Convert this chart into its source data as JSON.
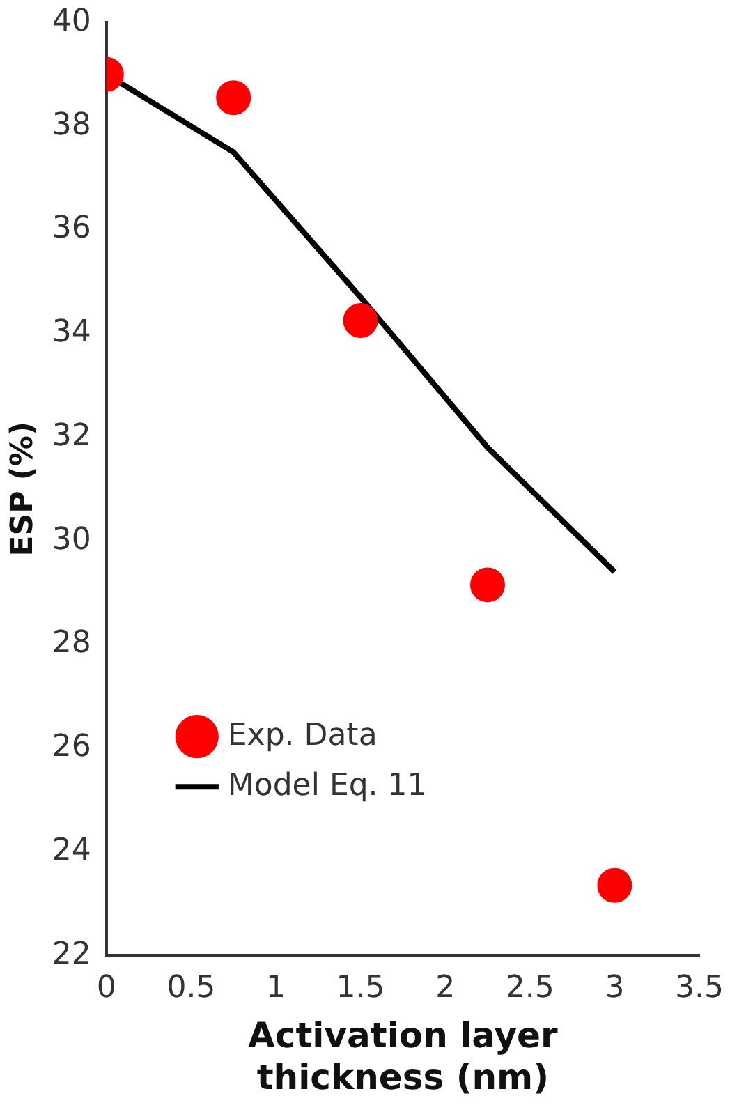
{
  "chart_data": {
    "type": "scatter",
    "xlabel": "Activation layer\nthickness (nm)",
    "ylabel": "ESP (%)",
    "xlim": [
      0,
      3.5
    ],
    "xticks": [
      0,
      0.5,
      1,
      1.5,
      2,
      2.5,
      3,
      3.5
    ],
    "ylim": [
      22,
      40
    ],
    "yticks": [
      22,
      24,
      26,
      28,
      30,
      32,
      34,
      36,
      38,
      40
    ],
    "grid": false,
    "legend": "bottom",
    "marker": "circle",
    "series": [
      {
        "name": "Exp. Data",
        "color": "#ff0000",
        "x": [
          0,
          0.75,
          1.5,
          2.25,
          3.0
        ],
        "values": [
          39.0,
          38.55,
          34.25,
          29.15,
          23.35
        ]
      },
      {
        "name": "Model Eq. 11",
        "type": "line",
        "color": "#000000",
        "line_style": "solid",
        "marker": "none",
        "x": [
          0,
          0.75,
          1.5,
          2.25,
          3.0
        ],
        "values": [
          39.0,
          37.5,
          34.7,
          31.8,
          29.4
        ]
      }
    ]
  }
}
